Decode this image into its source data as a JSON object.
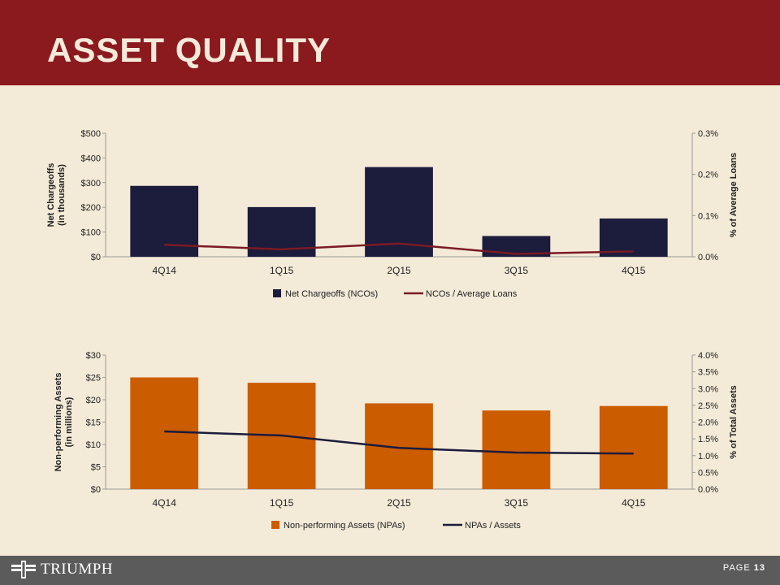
{
  "header": {
    "title": "ASSET QUALITY"
  },
  "footer": {
    "logo_text": "TRIUMPH",
    "page_label": "PAGE",
    "page_number": "13"
  },
  "colors": {
    "header_bg": "#8b1a1e",
    "background": "#f3ead8",
    "footer_bg": "#5b5b5b",
    "bar1": "#1c1c3c",
    "line1": "#7b1a24",
    "bar2": "#cc5c00",
    "line2": "#1c1c3c"
  },
  "chart_data": [
    {
      "type": "bar",
      "categories": [
        "4Q14",
        "1Q15",
        "2Q15",
        "3Q15",
        "4Q15"
      ],
      "series": [
        {
          "name": "Net Chargeoffs (NCOs)",
          "type": "bar",
          "axis": "left",
          "values": [
            287,
            201,
            363,
            84,
            155
          ]
        },
        {
          "name": "NCOs / Average Loans",
          "type": "line",
          "axis": "right",
          "values": [
            0.029,
            0.018,
            0.032,
            0.007,
            0.013
          ]
        }
      ],
      "ylabel": "Net Chargeoffs\n(in thousands)",
      "y2label": "% of Average Loans",
      "ylim": [
        0,
        500
      ],
      "y2lim": [
        0,
        0.3
      ],
      "yticks": [
        "$0",
        "$100",
        "$200",
        "$300",
        "$400",
        "$500"
      ],
      "y2ticks": [
        "0.0%",
        "0.1%",
        "0.2%",
        "0.3%"
      ],
      "legend": "bottom",
      "grid": false
    },
    {
      "type": "bar",
      "categories": [
        "4Q14",
        "1Q15",
        "2Q15",
        "3Q15",
        "4Q15"
      ],
      "series": [
        {
          "name": "Non-performing Assets (NPAs)",
          "type": "bar",
          "axis": "left",
          "values": [
            25.0,
            23.8,
            19.2,
            17.6,
            18.6
          ]
        },
        {
          "name": "NPAs / Assets",
          "type": "line",
          "axis": "right",
          "values": [
            1.72,
            1.6,
            1.23,
            1.09,
            1.06
          ]
        }
      ],
      "ylabel": "Non-performing Assets\n(in millions)",
      "y2label": "% of Total Assets",
      "ylim": [
        0,
        30
      ],
      "y2lim": [
        0,
        4.0
      ],
      "yticks": [
        "$0",
        "$5",
        "$10",
        "$15",
        "$20",
        "$25",
        "$30"
      ],
      "y2ticks": [
        "0.0%",
        "0.5%",
        "1.0%",
        "1.5%",
        "2.0%",
        "2.5%",
        "3.0%",
        "3.5%",
        "4.0%"
      ],
      "legend": "bottom",
      "grid": false
    }
  ]
}
